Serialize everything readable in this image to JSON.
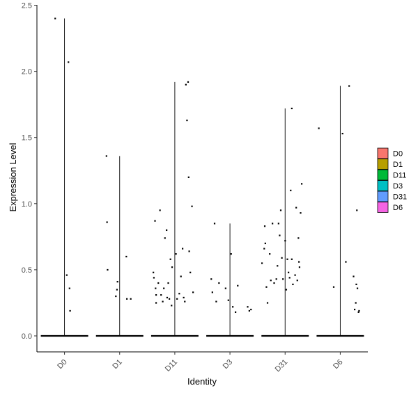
{
  "chart_data": {
    "type": "violin",
    "xlabel": "Identity",
    "ylabel": "Expression Level",
    "ylim": [
      0,
      2.5
    ],
    "yticks": [
      "0.0",
      "0.5",
      "1.0",
      "1.5",
      "2.0",
      "2.5"
    ],
    "categories": [
      "D0",
      "D1",
      "D11",
      "D3",
      "D31",
      "D6"
    ],
    "legend": {
      "placement": "right",
      "items": [
        {
          "label": "D0",
          "color": "#F8766D"
        },
        {
          "label": "D1",
          "color": "#B79F00"
        },
        {
          "label": "D11",
          "color": "#00BA38"
        },
        {
          "label": "D3",
          "color": "#00BFC4"
        },
        {
          "label": "D31",
          "color": "#619CFF"
        },
        {
          "label": "D6",
          "color": "#F564E3"
        }
      ]
    },
    "series": [
      {
        "name": "D0",
        "max": 2.4,
        "points": [
          [
            -0.17,
            2.4
          ],
          [
            0.07,
            2.07
          ],
          [
            0.04,
            0.46
          ],
          [
            0.09,
            0.36
          ],
          [
            0.1,
            0.19
          ]
        ]
      },
      {
        "name": "D1",
        "max": 1.36,
        "points": [
          [
            -0.23,
            0.86
          ],
          [
            -0.24,
            1.36
          ],
          [
            -0.22,
            0.5
          ],
          [
            -0.07,
            0.3
          ],
          [
            -0.04,
            0.41
          ],
          [
            -0.05,
            0.35
          ],
          [
            0.12,
            0.6
          ],
          [
            0.13,
            0.28
          ],
          [
            0.2,
            0.28
          ]
        ]
      },
      {
        "name": "D11",
        "max": 1.92,
        "points": [
          [
            -0.39,
            0.48
          ],
          [
            -0.38,
            0.44
          ],
          [
            -0.36,
            0.87
          ],
          [
            -0.35,
            0.36
          ],
          [
            -0.34,
            0.31
          ],
          [
            -0.34,
            0.25
          ],
          [
            -0.3,
            0.4
          ],
          [
            -0.27,
            0.95
          ],
          [
            -0.25,
            0.31
          ],
          [
            -0.22,
            0.26
          ],
          [
            -0.2,
            0.36
          ],
          [
            -0.18,
            0.74
          ],
          [
            -0.15,
            0.8
          ],
          [
            -0.14,
            0.29
          ],
          [
            -0.12,
            0.4
          ],
          [
            -0.1,
            0.28
          ],
          [
            -0.08,
            0.58
          ],
          [
            -0.06,
            0.23
          ],
          [
            -0.05,
            0.52
          ],
          [
            0.02,
            0.62
          ],
          [
            0.04,
            0.28
          ],
          [
            0.08,
            0.32
          ],
          [
            0.11,
            0.45
          ],
          [
            0.14,
            0.66
          ],
          [
            0.16,
            0.29
          ],
          [
            0.18,
            0.26
          ],
          [
            0.2,
            1.9
          ],
          [
            0.22,
            1.63
          ],
          [
            0.24,
            1.92
          ],
          [
            0.25,
            1.2
          ],
          [
            0.26,
            0.64
          ],
          [
            0.28,
            0.48
          ],
          [
            0.31,
            0.98
          ],
          [
            0.33,
            0.33
          ]
        ]
      },
      {
        "name": "D3",
        "max": 0.85,
        "points": [
          [
            -0.34,
            0.43
          ],
          [
            -0.32,
            0.33
          ],
          [
            -0.28,
            0.85
          ],
          [
            -0.25,
            0.26
          ],
          [
            -0.2,
            0.4
          ],
          [
            -0.08,
            0.36
          ],
          [
            -0.03,
            0.27
          ],
          [
            0.02,
            0.62
          ],
          [
            0.05,
            0.22
          ],
          [
            0.1,
            0.18
          ],
          [
            0.14,
            0.38
          ],
          [
            0.32,
            0.22
          ],
          [
            0.35,
            0.19
          ],
          [
            0.38,
            0.2
          ]
        ]
      },
      {
        "name": "D31",
        "max": 1.72,
        "points": [
          [
            -0.42,
            0.55
          ],
          [
            -0.38,
            0.66
          ],
          [
            -0.37,
            0.83
          ],
          [
            -0.36,
            0.7
          ],
          [
            -0.34,
            0.37
          ],
          [
            -0.32,
            0.25
          ],
          [
            -0.28,
            0.62
          ],
          [
            -0.26,
            0.42
          ],
          [
            -0.23,
            0.85
          ],
          [
            -0.2,
            0.4
          ],
          [
            -0.16,
            0.43
          ],
          [
            -0.14,
            0.53
          ],
          [
            -0.12,
            0.85
          ],
          [
            -0.1,
            0.76
          ],
          [
            -0.08,
            0.95
          ],
          [
            -0.06,
            0.59
          ],
          [
            -0.04,
            0.43
          ],
          [
            0.0,
            0.72
          ],
          [
            0.02,
            0.35
          ],
          [
            0.04,
            0.58
          ],
          [
            0.06,
            0.48
          ],
          [
            0.08,
            0.44
          ],
          [
            0.1,
            1.1
          ],
          [
            0.12,
            0.58
          ],
          [
            0.14,
            0.39
          ],
          [
            0.18,
            0.46
          ],
          [
            0.2,
            0.97
          ],
          [
            0.22,
            0.42
          ],
          [
            0.24,
            0.74
          ],
          [
            0.25,
            0.56
          ],
          [
            0.26,
            0.52
          ],
          [
            0.28,
            0.93
          ],
          [
            0.3,
            1.15
          ],
          [
            0.12,
            1.72
          ]
        ]
      },
      {
        "name": "D6",
        "max": 1.89,
        "points": [
          [
            -0.39,
            1.57
          ],
          [
            -0.12,
            0.37
          ],
          [
            0.04,
            1.53
          ],
          [
            0.1,
            0.56
          ],
          [
            0.16,
            1.89
          ],
          [
            0.24,
            0.45
          ],
          [
            0.28,
            0.25
          ],
          [
            0.29,
            0.39
          ],
          [
            0.3,
            0.95
          ],
          [
            0.31,
            0.36
          ],
          [
            0.33,
            0.18
          ],
          [
            0.34,
            0.19
          ],
          [
            0.26,
            0.2
          ]
        ]
      }
    ]
  }
}
